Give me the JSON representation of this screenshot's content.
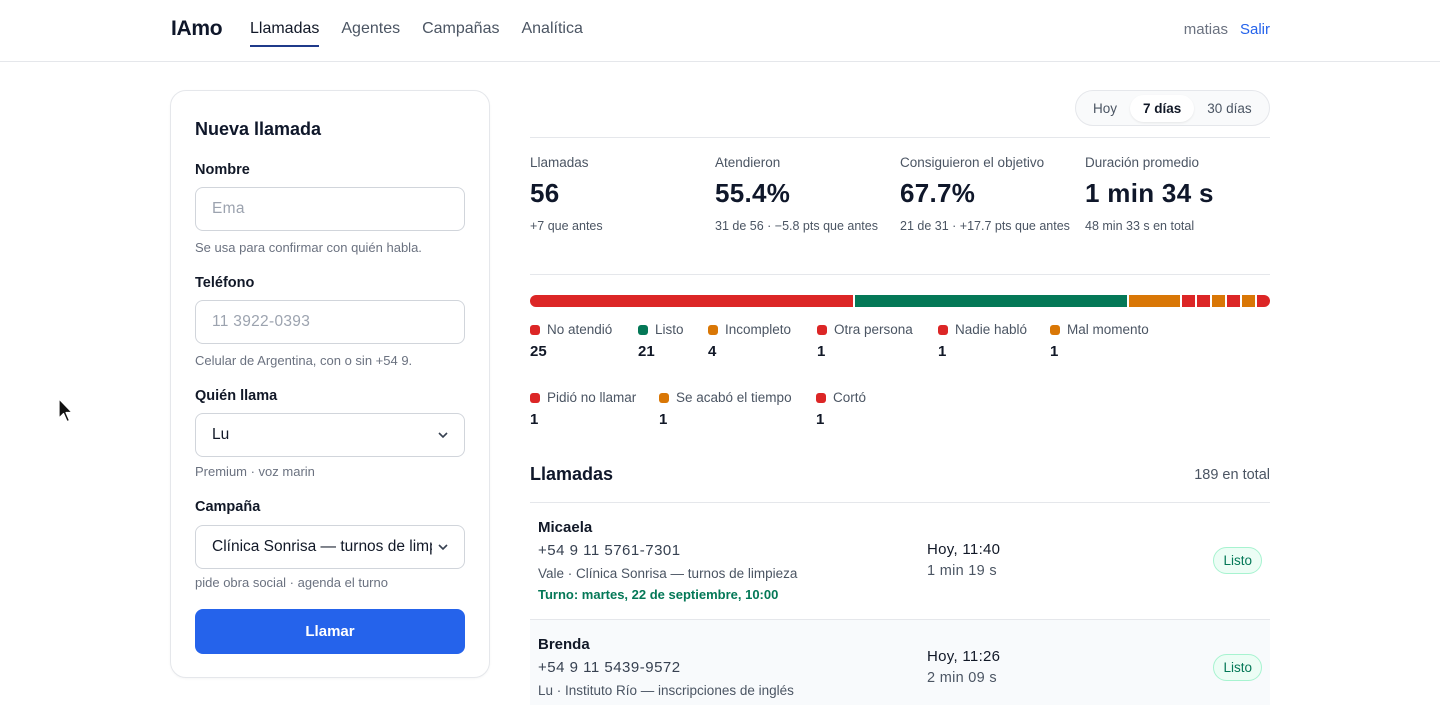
{
  "app": {
    "brand": "IAmo"
  },
  "nav": {
    "items": [
      {
        "label": "Llamadas",
        "active": true
      },
      {
        "label": "Agentes",
        "active": false
      },
      {
        "label": "Campañas",
        "active": false
      },
      {
        "label": "Analítica",
        "active": false
      }
    ],
    "user": "matias",
    "logout": "Salir"
  },
  "form": {
    "title": "Nueva llamada",
    "name_label": "Nombre",
    "name_placeholder": "Ema",
    "name_hint": "Se usa para confirmar con quién habla.",
    "phone_label": "Teléfono",
    "phone_placeholder": "11 3922-0393",
    "phone_hint": "Celular de Argentina, con o sin +54 9.",
    "caller_label": "Quién llama",
    "caller_value": "Lu",
    "caller_hint": "Premium · voz marin",
    "campaign_label": "Campaña",
    "campaign_value": "Clínica Sonrisa — turnos de limpieza",
    "campaign_hint": "pide obra social · agenda el turno",
    "submit": "Llamar"
  },
  "range": {
    "options": [
      "Hoy",
      "7 días",
      "30 días"
    ],
    "selected": "7 días"
  },
  "stats": [
    {
      "label": "Llamadas",
      "value": "56",
      "sub": "+7 que antes"
    },
    {
      "label": "Atendieron",
      "value": "55.4%",
      "sub": "31 de 56 · −5.8 pts que antes"
    },
    {
      "label": "Consiguieron el objetivo",
      "value": "67.7%",
      "sub": "21 de 31 · +17.7 pts que antes"
    },
    {
      "label": "Duración promedio",
      "value": "1 min 34 s",
      "sub": "48 min 33 s en total"
    }
  ],
  "outcomes": [
    {
      "label": "No atendió",
      "count": "25",
      "color": "#dc2626"
    },
    {
      "label": "Listo",
      "count": "21",
      "color": "#047857"
    },
    {
      "label": "Incompleto",
      "count": "4",
      "color": "#d97706"
    },
    {
      "label": "Otra persona",
      "count": "1",
      "color": "#dc2626"
    },
    {
      "label": "Nadie habló",
      "count": "1",
      "color": "#dc2626"
    },
    {
      "label": "Mal momento",
      "count": "1",
      "color": "#d97706"
    },
    {
      "label": "Pidió no llamar",
      "count": "1",
      "color": "#dc2626"
    },
    {
      "label": "Se acabó el tiempo",
      "count": "1",
      "color": "#d97706"
    },
    {
      "label": "Cortó",
      "count": "1",
      "color": "#dc2626"
    }
  ],
  "calls": {
    "title": "Llamadas",
    "total": "189 en total",
    "rows": [
      {
        "name": "Micaela",
        "phone": "+54 9 11 5761-7301",
        "meta": "Vale · Clínica Sonrisa — turnos de limpieza",
        "turno": "Turno: martes, 22 de septiembre, 10:00",
        "time": "Hoy, 11:40",
        "duration": "1 min 19 s",
        "status": "Listo"
      },
      {
        "name": "Brenda",
        "phone": "+54 9 11 5439-9572",
        "meta": "Lu · Instituto Río — inscripciones de inglés",
        "turno": "",
        "time": "Hoy, 11:26",
        "duration": "2 min 09 s",
        "status": "Listo"
      }
    ]
  }
}
